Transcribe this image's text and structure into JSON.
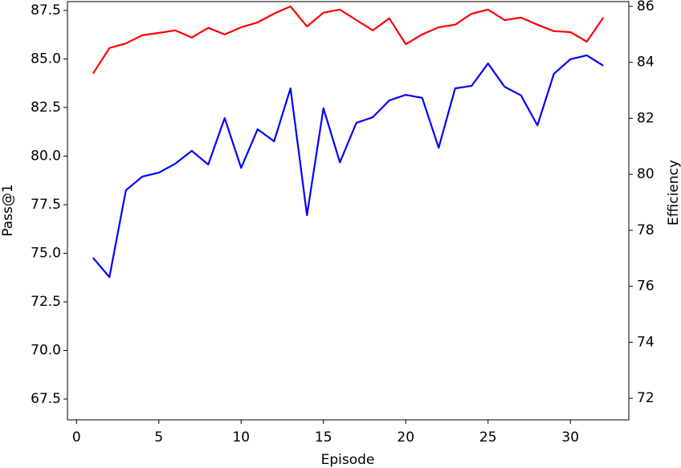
{
  "chart_data": {
    "type": "line",
    "x_label": "Episode",
    "y_label": "Pass@1",
    "y2_label": "Efficiency",
    "y_label_color": "#ff0000",
    "y2_label_color": "#0000ff",
    "x": [
      1,
      2,
      3,
      4,
      5,
      6,
      7,
      8,
      9,
      10,
      11,
      12,
      13,
      14,
      15,
      16,
      17,
      18,
      19,
      20,
      21,
      22,
      23,
      24,
      25,
      26,
      27,
      28,
      29,
      30,
      31,
      32
    ],
    "series": [
      {
        "name": "Pass@1",
        "color": "#ff0000",
        "axis": "y",
        "values": [
          84.24,
          85.56,
          85.8,
          86.22,
          86.34,
          86.47,
          86.1,
          86.6,
          86.26,
          86.63,
          86.88,
          87.33,
          87.7,
          86.67,
          87.38,
          87.54,
          87.0,
          86.47,
          87.09,
          85.76,
          86.26,
          86.63,
          86.76,
          87.33,
          87.54,
          87.0,
          87.13,
          86.76,
          86.43,
          86.38,
          85.89,
          87.13
        ]
      },
      {
        "name": "Efficiency",
        "color": "#0000ff",
        "axis": "y2",
        "values": [
          77.02,
          76.33,
          79.43,
          79.92,
          80.06,
          80.38,
          80.84,
          80.35,
          82.01,
          80.23,
          81.61,
          81.18,
          83.07,
          78.54,
          82.36,
          80.43,
          81.84,
          82.04,
          82.64,
          82.84,
          82.73,
          80.95,
          83.07,
          83.16,
          83.96,
          83.13,
          82.82,
          81.75,
          83.59,
          84.11,
          84.25,
          83.88
        ]
      }
    ],
    "xlim": [
      -0.55,
      33.55
    ],
    "xticks": [
      0,
      5,
      10,
      15,
      20,
      25,
      30
    ],
    "ylim": [
      66.43,
      87.95
    ],
    "yticks": [
      67.5,
      {
        "value": 70,
        "label": "70.0"
      },
      72.5,
      {
        "value": 75,
        "label": "75.0"
      },
      77.5,
      {
        "value": 80,
        "label": "80.0"
      },
      82.5,
      {
        "value": 85,
        "label": "85.0"
      },
      87.5
    ],
    "y2lim": [
      71.23,
      86.17
    ],
    "y2ticks": [
      72,
      74,
      76,
      78,
      80,
      82,
      84,
      86
    ]
  }
}
